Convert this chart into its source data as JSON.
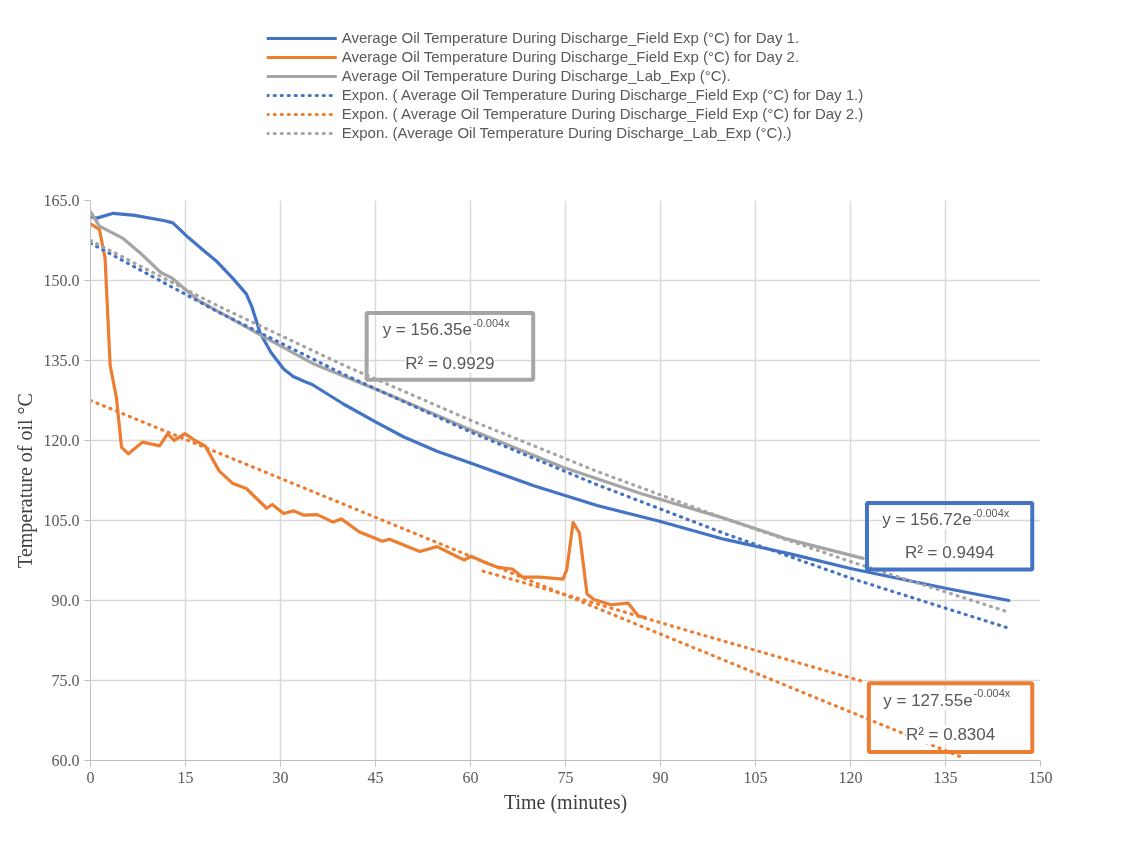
{
  "chart_data": {
    "type": "line",
    "xlabel": "Time (minutes)",
    "ylabel": "Temperature of oil °C",
    "xlim": [
      0,
      150
    ],
    "xticks": [
      0,
      15,
      30,
      45,
      60,
      75,
      90,
      105,
      120,
      135,
      150
    ],
    "ylim": [
      60,
      165
    ],
    "yticks": [
      {
        "value": 60,
        "label": "60.0"
      },
      {
        "value": 75,
        "label": "75.0"
      },
      {
        "value": 90,
        "label": "90.0"
      },
      {
        "value": 105,
        "label": "105.0"
      },
      {
        "value": 120,
        "label": "120.0"
      },
      {
        "value": 135,
        "label": "135.0"
      },
      {
        "value": 150,
        "label": "150.0"
      },
      {
        "value": 165,
        "label": "165.0"
      }
    ],
    "grid": true,
    "legend": "top",
    "series": [
      {
        "name": "Average Oil Temperature During Discharge_Field Exp (°C) for Day 1.",
        "color": "#4472c4",
        "line_style": "solid",
        "x": [
          0,
          1,
          3.6,
          7,
          11.7,
          13,
          15.5,
          18,
          20,
          22.4,
          24.6,
          25.5,
          26.8,
          28.5,
          30.5,
          32,
          33.7,
          35,
          40,
          45,
          49.4,
          54.7,
          60,
          70,
          80,
          89.7,
          100,
          111,
          120,
          135,
          145
        ],
        "values": [
          161.9,
          161.7,
          162.6,
          162.2,
          161.2,
          160.8,
          158,
          155.5,
          153.5,
          150.5,
          147.5,
          145,
          140.1,
          136.5,
          133.4,
          132,
          131.1,
          130.5,
          126.8,
          123.5,
          120.7,
          118,
          115.8,
          111.5,
          107.8,
          104.9,
          101.5,
          98.6,
          96,
          92.3,
          90
        ]
      },
      {
        "name": "Average Oil Temperature During Discharge_Field Exp (°C) for Day 2.",
        "color": "#ed7d31",
        "line_style": "solid",
        "x": [
          0,
          1.4,
          2.3,
          3.1,
          4.1,
          4.9,
          6,
          8.2,
          10.9,
          12.2,
          13.2,
          14.9,
          16.5,
          18.1,
          20.3,
          22.4,
          24.6,
          27.8,
          28.7,
          30.5,
          32.1,
          33.7,
          35.8,
          38.3,
          39.6,
          42.4,
          46.1,
          47.2,
          52,
          54.7,
          59,
          60.1,
          62.8,
          64.4,
          66.6,
          68.2,
          70.9,
          74.6,
          75.2,
          76.2,
          77.2,
          78.4,
          79.5,
          82.2,
          84.9,
          86.5,
          87.6
        ],
        "values": [
          160.6,
          159.6,
          154.2,
          134.1,
          128,
          118.7,
          117.5,
          119.7,
          119,
          121.3,
          120,
          121.3,
          120,
          119,
          114.3,
          112,
          111,
          107.3,
          108,
          106.3,
          106.8,
          106,
          106.1,
          104.7,
          105.3,
          102.9,
          101.1,
          101.5,
          99.2,
          100.1,
          97.6,
          98.3,
          96.9,
          96.2,
          95.9,
          94.4,
          94.4,
          94,
          95.8,
          104.6,
          102.7,
          91.2,
          90.2,
          89.2,
          89.5,
          87.1,
          86.8
        ]
      },
      {
        "name": "Average Oil Temperature During Discharge_Lab_Exp (°C).",
        "color": "#a5a5a5",
        "line_style": "solid",
        "x": [
          0,
          1.4,
          5,
          8,
          11.1,
          12.8,
          17.1,
          22,
          26.8,
          35,
          46.7,
          60,
          74.6,
          87,
          100.4,
          110,
          122
        ],
        "values": [
          162.9,
          160.2,
          158,
          155,
          151.5,
          150.5,
          146.2,
          143,
          139.8,
          134.5,
          128.8,
          122,
          115,
          110,
          105.3,
          101.5,
          97.9
        ]
      },
      {
        "name": "Expon. ( Average Oil Temperature During Discharge_Field Exp (°C) for Day 1.)",
        "color": "#4472c4",
        "line_style": "dotted",
        "x": [
          0,
          20,
          40,
          60,
          80,
          100,
          120,
          145
        ],
        "values": [
          157,
          144.2,
          132.4,
          121.6,
          111.7,
          102.6,
          94.2,
          84.8
        ]
      },
      {
        "name": "Expon. ( Average Oil Temperature During Discharge_Field Exp (°C) for Day 2.)",
        "color": "#ed7d31",
        "line_style": "dotted",
        "x": [
          0,
          15,
          30,
          45,
          60,
          75,
          90,
          105,
          120,
          138
        ],
        "values": [
          127.5,
          120.2,
          112.9,
          105.6,
          98.3,
          91,
          83.7,
          76.4,
          69.1,
          60.4
        ]
      },
      {
        "name": "Expon. (Average Oil Temperature During Discharge_Lab_Exp (°C).)",
        "color": "#a5a5a5",
        "line_style": "dotted",
        "x": [
          0,
          20,
          40,
          60,
          80,
          100,
          120,
          145
        ],
        "values": [
          157.5,
          145.3,
          134.1,
          123.8,
          114.2,
          105.4,
          97.3,
          87.8
        ]
      },
      {
        "color": "#ed7d31",
        "line_style": "dotted",
        "x": [
          62,
          75,
          95,
          122
        ],
        "values": [
          95.5,
          91.1,
          84.1,
          74.8
        ]
      }
    ],
    "annotations": [
      "y = 156.35e$^{-0.004x}$\nR² = 0.9929",
      "y = 156.72e$^{-0.004x}$\nR² = 0.9494",
      "y = 127.55e$^{-0.004x}$\nR² = 0.8304"
    ]
  }
}
